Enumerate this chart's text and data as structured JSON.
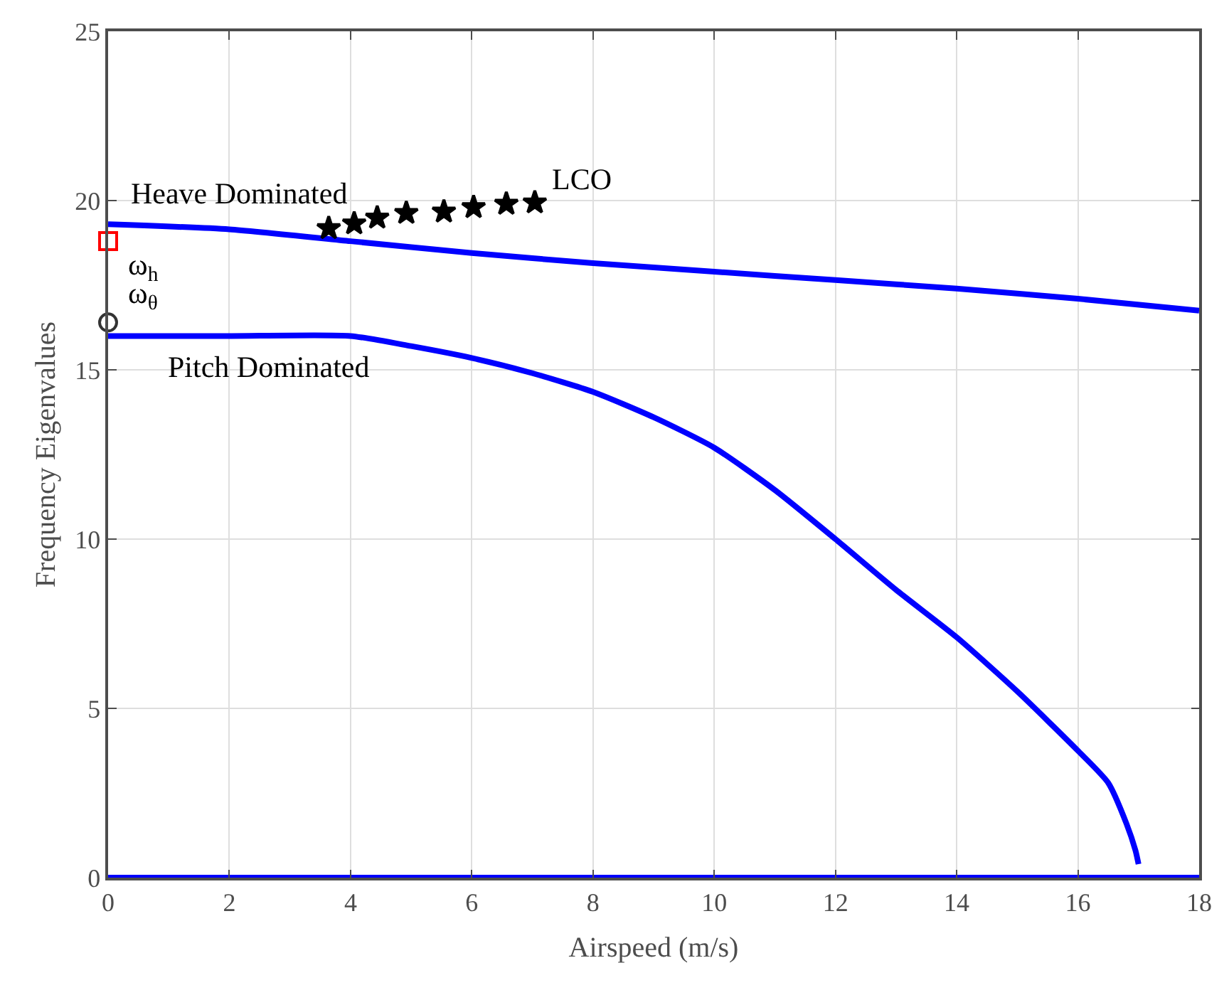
{
  "chart_data": {
    "type": "line",
    "xlabel": "Airspeed (m/s)",
    "ylabel": "Frequency Eigenvalues",
    "xlim": [
      0,
      18
    ],
    "xticks": [
      0,
      2,
      4,
      6,
      8,
      10,
      12,
      14,
      16,
      18
    ],
    "ylim": [
      0,
      25
    ],
    "yticks": [
      0,
      5,
      10,
      15,
      20,
      25
    ],
    "grid": true,
    "legend": false,
    "line_style": "solid",
    "series": [
      {
        "name": "Heave Dominated",
        "color": "#0000ff",
        "marker": "none",
        "x": [
          0,
          2,
          4,
          6,
          8,
          10,
          12,
          14,
          16,
          18
        ],
        "values": [
          19.3,
          19.15,
          18.8,
          18.45,
          18.15,
          17.9,
          17.65,
          17.4,
          17.1,
          16.75
        ]
      },
      {
        "name": "Pitch Dominated",
        "color": "#0000ff",
        "marker": "none",
        "x": [
          0,
          2,
          4,
          5,
          6,
          7,
          8,
          9,
          10,
          11,
          12,
          13,
          14,
          15,
          16,
          16.5,
          16.8,
          16.95,
          17.0
        ],
        "values": [
          16,
          16,
          16,
          15.7,
          15.35,
          14.9,
          14.35,
          13.6,
          12.7,
          11.45,
          10.0,
          8.5,
          7.1,
          5.5,
          3.75,
          2.8,
          1.6,
          0.8,
          0.4
        ]
      },
      {
        "color": "#0000ff",
        "marker": "none",
        "x": [
          0,
          18
        ],
        "values": [
          0,
          0
        ]
      },
      {
        "name": "LCO",
        "type": "scatter",
        "color": "#000000",
        "marker": "star",
        "x": [
          3.64,
          4.06,
          4.44,
          4.92,
          5.54,
          6.03,
          6.57,
          7.04
        ],
        "values": [
          19.18,
          19.32,
          19.49,
          19.63,
          19.67,
          19.8,
          19.9,
          19.94
        ]
      },
      {
        "name": "ω$_{h}$",
        "type": "scatter",
        "color": "#ff0000",
        "marker": "square",
        "x": [
          0
        ],
        "values": [
          18.8
        ]
      },
      {
        "name": "ω$_{θ}$",
        "type": "scatter",
        "color": "#333333",
        "marker": "circle",
        "x": [
          0
        ],
        "values": [
          16.4
        ]
      }
    ]
  }
}
